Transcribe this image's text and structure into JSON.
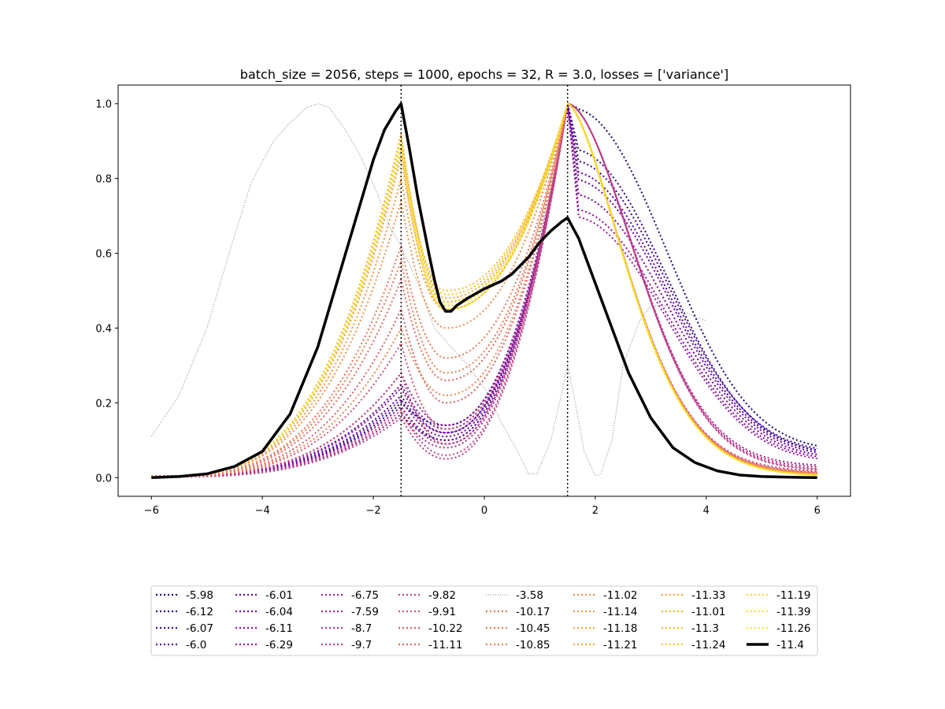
{
  "chart_data": {
    "type": "line",
    "title": "batch_size = 2056, steps = 1000, epochs = 32, R = 3.0, losses = ['variance']",
    "xlabel": "",
    "ylabel": "",
    "xlim": [
      -6.6,
      6.6
    ],
    "ylim": [
      -0.05,
      1.05
    ],
    "x_ticks": [
      "−6",
      "−4",
      "−2",
      "0",
      "2",
      "4",
      "6"
    ],
    "y_ticks": [
      "0.0",
      "0.2",
      "0.4",
      "0.6",
      "0.8",
      "1.0"
    ],
    "vertical_lines": [
      -1.5,
      1.5
    ],
    "grid": false,
    "legend_placement": "below",
    "legend_columns": 8,
    "reference_curve": {
      "name": "-3.58",
      "color": "#808080",
      "x": [
        -6,
        -5.5,
        -5,
        -4.6,
        -4.2,
        -3.8,
        -3.5,
        -3.2,
        -3.0,
        -2.8,
        -2.5,
        -2.2,
        -1.9,
        -1.7,
        -1.5,
        -1.2,
        -0.9,
        -0.6,
        -0.3,
        0,
        0.3,
        0.6,
        0.8,
        0.95,
        1.2,
        1.4,
        1.5,
        1.6,
        1.8,
        2.0,
        2.1,
        2.3,
        2.5,
        2.8,
        3.0,
        3.3,
        3.5,
        3.8,
        4.0
      ],
      "y": [
        0.11,
        0.22,
        0.4,
        0.6,
        0.79,
        0.9,
        0.95,
        0.99,
        1.0,
        0.99,
        0.93,
        0.85,
        0.75,
        0.67,
        0.62,
        0.52,
        0.4,
        0.35,
        0.3,
        0.24,
        0.15,
        0.07,
        0.01,
        0.01,
        0.1,
        0.23,
        0.3,
        0.23,
        0.07,
        0.005,
        0.01,
        0.1,
        0.3,
        0.42,
        0.46,
        0.46,
        0.45,
        0.43,
        0.42
      ]
    },
    "series": [
      {
        "name": "-5.98",
        "color": "#0d0887",
        "peak_left": 0.2,
        "trough": 0.14,
        "right_mode": "wide",
        "wide_top": 0.99,
        "tail_right": 0.07,
        "tail_left": 0.003
      },
      {
        "name": "-6.12",
        "color": "#2a0593",
        "peak_left": 0.17,
        "trough": 0.1,
        "right_mode": "wide",
        "wide_top": 0.88,
        "tail_right": 0.06,
        "tail_left": 0.003
      },
      {
        "name": "-6.07",
        "color": "#41049d",
        "peak_left": 0.22,
        "trough": 0.12,
        "right_mode": "wide",
        "wide_top": 0.85,
        "tail_right": 0.065,
        "tail_left": 0.004
      },
      {
        "name": "-6.0",
        "color": "#5402a3",
        "peak_left": 0.19,
        "trough": 0.1,
        "right_mode": "wide",
        "wide_top": 0.82,
        "tail_right": 0.06,
        "tail_left": 0.004
      },
      {
        "name": "-6.01",
        "color": "#6a00a8",
        "peak_left": 0.25,
        "trough": 0.13,
        "right_mode": "wide",
        "wide_top": 0.8,
        "tail_right": 0.055,
        "tail_left": 0.004
      },
      {
        "name": "-6.04",
        "color": "#7c02a8",
        "peak_left": 0.21,
        "trough": 0.11,
        "right_mode": "wide",
        "wide_top": 0.76,
        "tail_right": 0.05,
        "tail_left": 0.004
      },
      {
        "name": "-6.11",
        "color": "#8b0aa5",
        "peak_left": 0.24,
        "trough": 0.12,
        "right_mode": "wide",
        "wide_top": 0.72,
        "tail_right": 0.045,
        "tail_left": 0.004
      },
      {
        "name": "-6.29",
        "color": "#9a169f",
        "peak_left": 0.28,
        "trough": 0.14,
        "right_mode": "wide",
        "wide_top": 0.7,
        "tail_right": 0.04,
        "tail_left": 0.004
      },
      {
        "name": "-6.75",
        "color": "#a72197",
        "peak_left": 0.19,
        "trough": 0.09,
        "right_mode": "mid",
        "wide_top": 0.0,
        "tail_right": 0.03,
        "tail_left": 0.003
      },
      {
        "name": "-7.59",
        "color": "#b12a90",
        "peak_left": 0.17,
        "trough": 0.08,
        "right_mode": "mid",
        "wide_top": 0.0,
        "tail_right": 0.025,
        "tail_left": 0.003
      },
      {
        "name": "-8.7",
        "color": "#bc3587",
        "peak_left": 0.16,
        "trough": 0.05,
        "right_mode": "mid",
        "wide_top": 0.0,
        "tail_right": 0.02,
        "tail_left": 0.002
      },
      {
        "name": "-9.7",
        "color": "#c5407e",
        "peak_left": 0.18,
        "trough": 0.06,
        "right_mode": "mid",
        "wide_top": 0.0,
        "tail_right": 0.018,
        "tail_left": 0.002
      },
      {
        "name": "-9.82",
        "color": "#cc4778",
        "peak_left": 0.28,
        "trough": 0.09,
        "right_mode": "narrow",
        "wide_top": 0.0,
        "tail_right": 0.015,
        "tail_left": 0.003
      },
      {
        "name": "-9.91",
        "color": "#d5536f",
        "peak_left": 0.36,
        "trough": 0.13,
        "right_mode": "narrow",
        "wide_top": 0.0,
        "tail_right": 0.012,
        "tail_left": 0.003
      },
      {
        "name": "-10.22",
        "color": "#dd5e66",
        "peak_left": 0.45,
        "trough": 0.2,
        "right_mode": "narrow",
        "wide_top": 0.0,
        "tail_right": 0.01,
        "tail_left": 0.003
      },
      {
        "name": "-11.11",
        "color": "#e4695e",
        "peak_left": 0.53,
        "trough": 0.26,
        "right_mode": "narrow",
        "wide_top": 0.0,
        "tail_right": 0.008,
        "tail_left": 0.003
      },
      {
        "name": "-10.17",
        "color": "#ea7457",
        "peak_left": 0.62,
        "trough": 0.32,
        "right_mode": "narrow",
        "wide_top": 0.0,
        "tail_right": 0.008,
        "tail_left": 0.003
      },
      {
        "name": "-10.45",
        "color": "#ee7e4f",
        "peak_left": 0.58,
        "trough": 0.28,
        "right_mode": "narrow",
        "wide_top": 0.0,
        "tail_right": 0.008,
        "tail_left": 0.003
      },
      {
        "name": "-10.85",
        "color": "#f2844b",
        "peak_left": 0.4,
        "trough": 0.22,
        "right_mode": "narrow",
        "wide_top": 0.0,
        "tail_right": 0.008,
        "tail_left": 0.003
      },
      {
        "name": "-11.02",
        "color": "#f58c46",
        "peak_left": 0.74,
        "trough": 0.4,
        "right_mode": "narrow",
        "wide_top": 0.0,
        "tail_right": 0.006,
        "tail_left": 0.003
      },
      {
        "name": "-11.14",
        "color": "#f89540",
        "peak_left": 0.8,
        "trough": 0.45,
        "right_mode": "narrow",
        "wide_top": 0.0,
        "tail_right": 0.006,
        "tail_left": 0.003
      },
      {
        "name": "-11.18",
        "color": "#f99e3c",
        "peak_left": 0.86,
        "trough": 0.47,
        "right_mode": "narrow",
        "wide_top": 0.0,
        "tail_right": 0.005,
        "tail_left": 0.003
      },
      {
        "name": "-11.21",
        "color": "#fba238",
        "peak_left": 0.92,
        "trough": 0.48,
        "right_mode": "narrow",
        "wide_top": 0.0,
        "tail_right": 0.005,
        "tail_left": 0.003
      },
      {
        "name": "-11.33",
        "color": "#fca636",
        "peak_left": 0.9,
        "trough": 0.46,
        "right_mode": "narrow",
        "wide_top": 0.0,
        "tail_right": 0.005,
        "tail_left": 0.003
      },
      {
        "name": "-11.01",
        "color": "#fdb130",
        "peak_left": 0.88,
        "trough": 0.45,
        "right_mode": "narrow",
        "wide_top": 0.0,
        "tail_right": 0.005,
        "tail_left": 0.003
      },
      {
        "name": "-11.3",
        "color": "#fdbb2b",
        "peak_left": 0.9,
        "trough": 0.5,
        "right_mode": "narrow",
        "wide_top": 0.0,
        "tail_right": 0.004,
        "tail_left": 0.003
      },
      {
        "name": "-11.24",
        "color": "#fcc627",
        "peak_left": 0.91,
        "trough": 0.49,
        "right_mode": "narrow",
        "wide_top": 0.0,
        "tail_right": 0.004,
        "tail_left": 0.003
      },
      {
        "name": "-11.19",
        "color": "#fad824",
        "peak_left": 0.89,
        "trough": 0.47,
        "right_mode": "narrow",
        "wide_top": 0.0,
        "tail_right": 0.004,
        "tail_left": 0.003
      },
      {
        "name": "-11.39",
        "color": "#f7e225",
        "peak_left": 0.9,
        "trough": 0.46,
        "right_mode": "narrow",
        "wide_top": 0.0,
        "tail_right": 0.004,
        "tail_left": 0.003
      },
      {
        "name": "-11.26",
        "color": "#f2e926",
        "peak_left": 0.9,
        "trough": 0.45,
        "right_mode": "narrow",
        "wide_top": 0.0,
        "tail_right": 0.004,
        "tail_left": 0.003
      }
    ],
    "best_curve": {
      "name": "-11.4",
      "color": "#000000",
      "x": [
        -6,
        -5.5,
        -5,
        -4.5,
        -4,
        -3.5,
        -3,
        -2.5,
        -2,
        -1.8,
        -1.6,
        -1.5,
        -1.35,
        -1.2,
        -1.0,
        -0.9,
        -0.8,
        -0.7,
        -0.6,
        -0.5,
        -0.3,
        0,
        0.3,
        0.5,
        0.8,
        1.0,
        1.2,
        1.4,
        1.5,
        1.7,
        2.0,
        2.3,
        2.6,
        3.0,
        3.4,
        3.8,
        4.2,
        4.6,
        5.0,
        5.5,
        6.0
      ],
      "y": [
        0.0,
        0.003,
        0.01,
        0.03,
        0.07,
        0.17,
        0.35,
        0.6,
        0.85,
        0.93,
        0.98,
        1.0,
        0.88,
        0.75,
        0.6,
        0.53,
        0.47,
        0.445,
        0.445,
        0.46,
        0.48,
        0.505,
        0.525,
        0.545,
        0.59,
        0.63,
        0.66,
        0.685,
        0.695,
        0.64,
        0.52,
        0.4,
        0.28,
        0.16,
        0.08,
        0.04,
        0.018,
        0.007,
        0.003,
        0.001,
        0.0
      ]
    },
    "legend_columns_order": [
      [
        "-5.98",
        "-6.12",
        "-6.07",
        "-6.0"
      ],
      [
        "-6.01",
        "-6.04",
        "-6.11",
        "-6.29"
      ],
      [
        "-6.75",
        "-7.59",
        "-8.7",
        "-9.7"
      ],
      [
        "-9.82",
        "-9.91",
        "-10.22",
        "-11.11"
      ],
      [
        "-3.58",
        "-10.17",
        "-10.45",
        "-10.85"
      ],
      [
        "-11.02",
        "-11.14",
        "-11.18",
        "-11.21"
      ],
      [
        "-11.33",
        "-11.01",
        "-11.3",
        "-11.24"
      ],
      [
        "-11.19",
        "-11.39",
        "-11.26",
        "-11.4"
      ]
    ]
  }
}
